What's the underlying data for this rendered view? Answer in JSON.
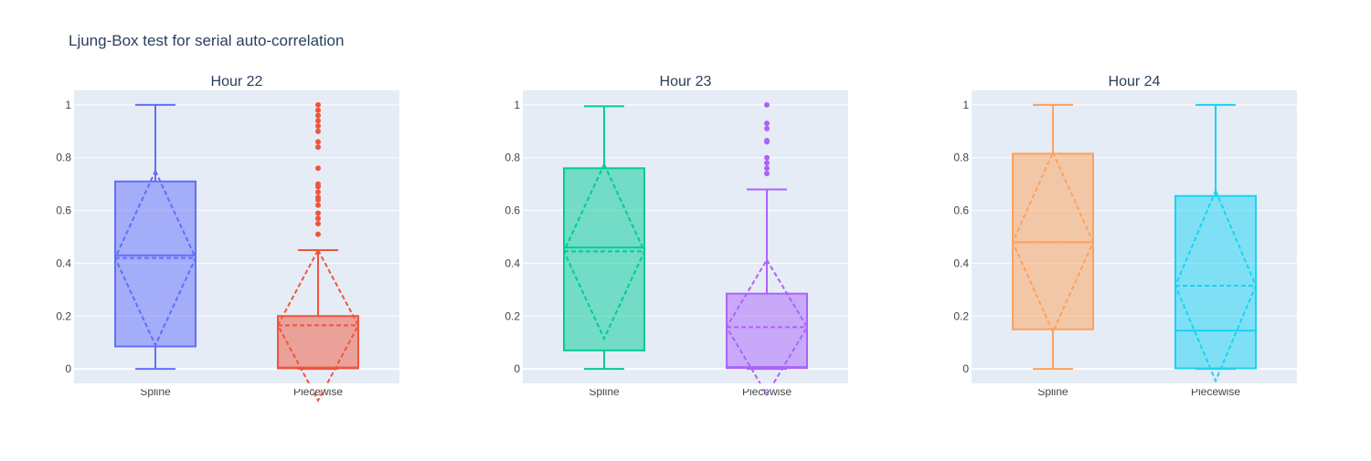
{
  "figure_title": "Ljung-Box test for serial auto-correlation",
  "colors": {
    "background": "#ffffff",
    "plot_bg": "#e5ecf6",
    "grid": "#ffffff",
    "text": "#2a3f5f",
    "tick_text": "#444444"
  },
  "chart_data": [
    {
      "type": "box",
      "title": "Hour 22",
      "categories": [
        "Spline",
        "Piecewise"
      ],
      "ylim": [
        -0.055,
        1.055
      ],
      "yticks": [
        0,
        0.2,
        0.4,
        0.6,
        0.8,
        1
      ],
      "ytick_labels": [
        "0",
        "0.2",
        "0.4",
        "0.6",
        "0.8",
        "1"
      ],
      "grid": true,
      "boxes": [
        {
          "category": "Spline",
          "color": "#636efa",
          "whisker_low": 0.0,
          "q1": 0.085,
          "median": 0.43,
          "q3": 0.71,
          "whisker_high": 1.0,
          "mean": 0.42,
          "sd": 0.33,
          "outliers": []
        },
        {
          "category": "Piecewise",
          "color": "#ef553b",
          "whisker_low": 0.0,
          "q1": 0.002,
          "median": 0.005,
          "q3": 0.2,
          "whisker_high": 0.45,
          "mean": 0.165,
          "sd": 0.285,
          "outliers": [
            0.51,
            0.55,
            0.57,
            0.59,
            0.62,
            0.64,
            0.65,
            0.67,
            0.69,
            0.7,
            0.76,
            0.84,
            0.86,
            0.9,
            0.92,
            0.94,
            0.96,
            0.98,
            1.0
          ]
        }
      ]
    },
    {
      "type": "box",
      "title": "Hour 23",
      "categories": [
        "Spline",
        "Piecewise"
      ],
      "ylim": [
        -0.055,
        1.055
      ],
      "yticks": [
        0,
        0.2,
        0.4,
        0.6,
        0.8,
        1
      ],
      "ytick_labels": [
        "0",
        "0.2",
        "0.4",
        "0.6",
        "0.8",
        "1"
      ],
      "grid": true,
      "boxes": [
        {
          "category": "Spline",
          "color": "#00cc96",
          "whisker_low": 0.0,
          "q1": 0.07,
          "median": 0.46,
          "q3": 0.76,
          "whisker_high": 0.995,
          "mean": 0.445,
          "sd": 0.33,
          "outliers": []
        },
        {
          "category": "Piecewise",
          "color": "#ab63fa",
          "whisker_low": 0.0,
          "q1": 0.003,
          "median": 0.007,
          "q3": 0.285,
          "whisker_high": 0.68,
          "mean": 0.158,
          "sd": 0.255,
          "outliers": [
            0.74,
            0.76,
            0.78,
            0.8,
            0.86,
            0.865,
            0.91,
            0.93,
            1.0
          ]
        }
      ]
    },
    {
      "type": "box",
      "title": "Hour 24",
      "categories": [
        "Spline",
        "Piecewise"
      ],
      "ylim": [
        -0.055,
        1.055
      ],
      "yticks": [
        0,
        0.2,
        0.4,
        0.6,
        0.8,
        1
      ],
      "ytick_labels": [
        "0",
        "0.2",
        "0.4",
        "0.6",
        "0.8",
        "1"
      ],
      "grid": true,
      "boxes": [
        {
          "category": "Spline",
          "color": "#ffa15a",
          "whisker_low": 0.0,
          "q1": 0.15,
          "median": 0.48,
          "q3": 0.815,
          "whisker_high": 1.0,
          "mean": 0.48,
          "sd": 0.34,
          "outliers": []
        },
        {
          "category": "Piecewise",
          "color": "#19d3f3",
          "whisker_low": 0.0,
          "q1": 0.002,
          "median": 0.145,
          "q3": 0.655,
          "whisker_high": 1.0,
          "mean": 0.315,
          "sd": 0.36,
          "outliers": []
        }
      ]
    }
  ]
}
